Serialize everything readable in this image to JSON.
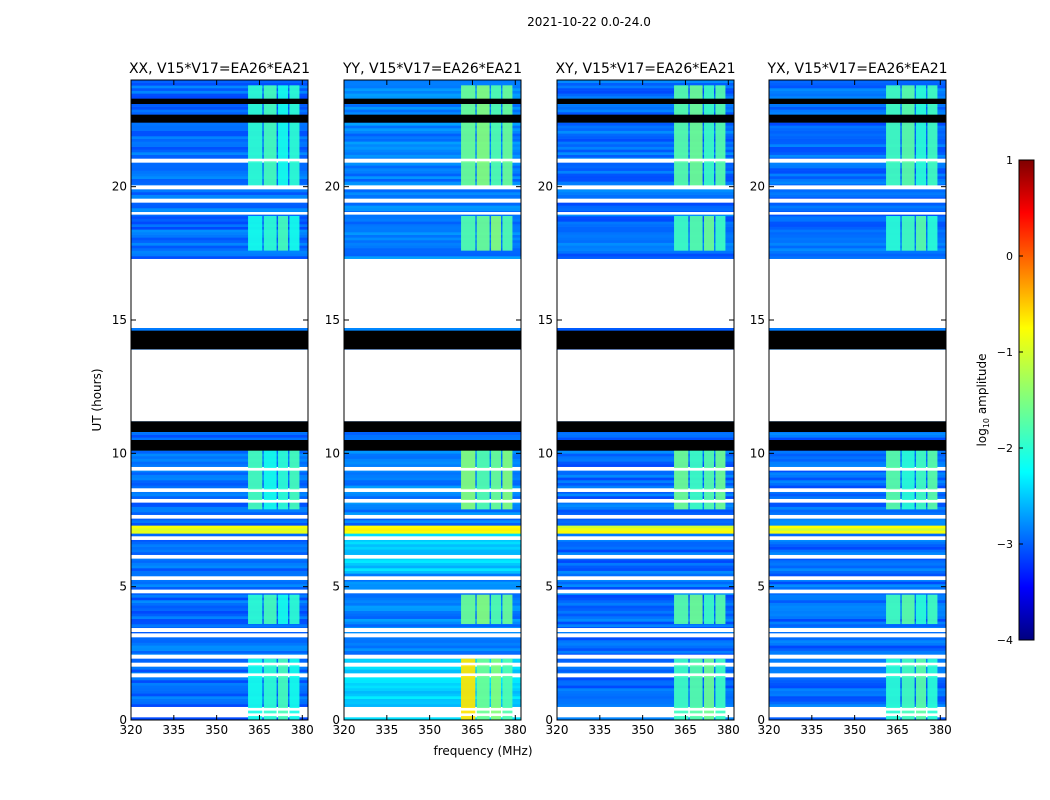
{
  "figure_title": "2021-10-22 0.0-24.0",
  "chart_data": {
    "type": "heatmap",
    "title": "2021-10-22 0.0-24.0",
    "xlabel": "frequency (MHz)",
    "ylabel": "UT (hours)",
    "xlim": [
      320,
      382
    ],
    "ylim": [
      0,
      24
    ],
    "x_ticks": [
      320,
      335,
      350,
      365,
      380
    ],
    "y_ticks": [
      0,
      5,
      10,
      15,
      20
    ],
    "panels": [
      {
        "title": "XX, V15*V17=EA26*EA21",
        "polarization": "XX",
        "band_level": -1.9,
        "background_level": -2.85,
        "flare_boost": 0.0
      },
      {
        "title": "YY, V15*V17=EA26*EA21",
        "polarization": "YY",
        "band_level": -1.6,
        "background_level": -2.75,
        "flare_boost": 0.6
      },
      {
        "title": "XY, V15*V17=EA26*EA21",
        "polarization": "XY",
        "band_level": -1.7,
        "background_level": -2.85,
        "flare_boost": 0.0
      },
      {
        "title": "YX, V15*V17=EA26*EA21",
        "polarization": "YX",
        "band_level": -1.8,
        "background_level": -2.85,
        "flare_boost": 0.0
      }
    ],
    "band_channels_MHz": [
      [
        361,
        366
      ],
      [
        366.5,
        371
      ],
      [
        371.5,
        375
      ],
      [
        375.5,
        379
      ]
    ],
    "band_time_ranges_h": [
      [
        0.0,
        2.3
      ],
      [
        3.6,
        4.7
      ],
      [
        7.9,
        10.3
      ],
      [
        17.6,
        18.9
      ],
      [
        20.0,
        23.8
      ]
    ],
    "gaps_h": [
      [
        11.2,
        13.9
      ],
      [
        14.7,
        17.3
      ]
    ],
    "blank_lines_h": [
      0.2,
      0.4,
      1.7,
      2.1,
      2.4,
      3.2,
      3.4,
      4.8,
      5.3,
      6.1,
      6.8,
      7.6,
      8.2,
      8.6,
      9.4,
      19.0,
      19.5,
      20.0,
      21.0
    ],
    "black_bands_h": [
      [
        10.1,
        10.5
      ],
      [
        10.8,
        11.2
      ],
      [
        13.9,
        14.6
      ],
      [
        22.4,
        22.7
      ],
      [
        23.1,
        23.3
      ]
    ],
    "rfi_row_h": [
      7.0,
      7.3
    ],
    "colorbar": {
      "label": "log10 amplitude",
      "label_main": "log",
      "label_sub": "10",
      "label_tail": " amplitude",
      "min": -4,
      "max": 1,
      "ticks": [
        -4,
        -3,
        -2,
        -1,
        0,
        1
      ],
      "tick_labels": [
        "−4",
        "−3",
        "−2",
        "−1",
        "0",
        "1"
      ],
      "colormap": "jet"
    }
  }
}
